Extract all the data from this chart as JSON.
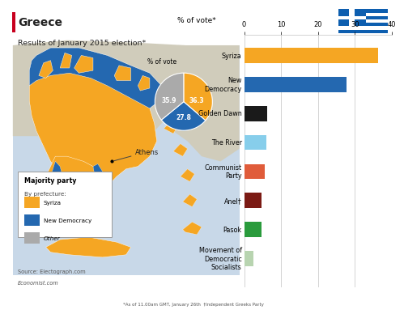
{
  "title": "Greece",
  "subtitle": "Results of January 2015 election*",
  "bar_title": "% of vote*",
  "parties": [
    "Syriza",
    "New\nDemocracy",
    "Golden Dawn",
    "The River",
    "Communist\nParty",
    "Anel†",
    "Pasok",
    "Movement of\nDemocratic\nSocialists"
  ],
  "values": [
    36.3,
    27.8,
    6.3,
    6.05,
    5.5,
    4.75,
    4.68,
    2.47
  ],
  "colors": [
    "#F5A623",
    "#2468B0",
    "#1A1A1A",
    "#87CEEB",
    "#E05C3A",
    "#7B1A14",
    "#2A9B3C",
    "#B8D4B0"
  ],
  "xlim": [
    0,
    40
  ],
  "xticks": [
    0,
    10,
    20,
    30,
    40
  ],
  "pie_values": [
    36.3,
    27.8,
    35.9
  ],
  "pie_labels": [
    "36.3",
    "27.8",
    "35.9"
  ],
  "pie_colors": [
    "#F5A623",
    "#2468B0",
    "#AAAAAA"
  ],
  "pie_title": "% of vote",
  "sea_color": "#C8D8E8",
  "land_color": "#E0DDD0",
  "syriza_color": "#F5A623",
  "nd_color": "#2468B0",
  "other_color": "#AAAAAA",
  "source_text": "Source: Electograph.com",
  "footnote1": "*As of 11.00am GMT, January 26th",
  "footnote2": "  †Independent Greeks Party",
  "economist_text": "Economist.com",
  "background_color": "#FFFFFF",
  "title_bar_color": "#C8001E",
  "athens_label": "Athens",
  "flag_blue": "#0D5EAF",
  "flag_white": "#FFFFFF"
}
